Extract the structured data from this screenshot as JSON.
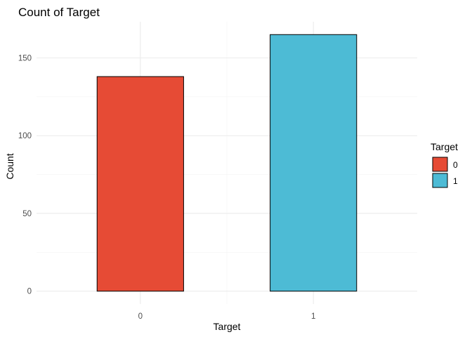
{
  "chart_data": {
    "type": "bar",
    "title": "Count of Target",
    "xlabel": "Target",
    "ylabel": "Count",
    "categories": [
      "0",
      "1"
    ],
    "values": [
      138,
      165
    ],
    "ylim": [
      0,
      165
    ],
    "yticks": [
      0,
      50,
      100,
      150
    ],
    "grid": true,
    "legend": {
      "title": "Target",
      "placement": "right",
      "entries": [
        {
          "label": "0",
          "color": "#E64B35"
        },
        {
          "label": "1",
          "color": "#4DBBD5"
        }
      ]
    },
    "colors": [
      "#E64B35",
      "#4DBBD5"
    ]
  }
}
